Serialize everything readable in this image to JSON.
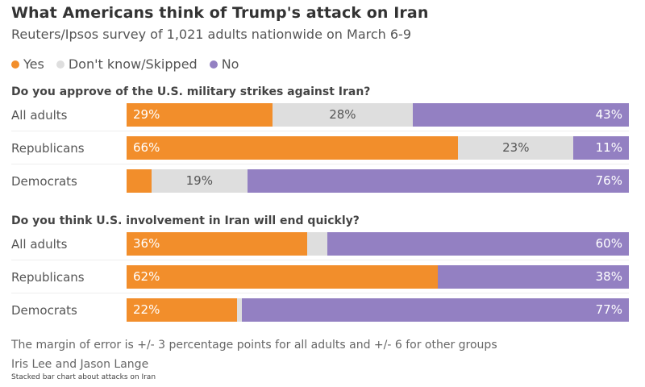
{
  "header": {
    "title": "What Americans think of Trump's attack on Iran",
    "subtitle": "Reuters/Ipsos survey of 1,021 adults nationwide on March 6-9"
  },
  "colors": {
    "yes": "#f28e2b",
    "dont_know": "#dedede",
    "no": "#9380c2"
  },
  "chart_data": {
    "type": "bar",
    "orientation": "horizontal",
    "stacked": true,
    "title": "What Americans think of Trump's attack on Iran",
    "subtitle": "Reuters/Ipsos survey of 1,021 adults nationwide on March 6-9",
    "legend": {
      "placement": "top-left",
      "entries": [
        {
          "key": "yes",
          "label": "Yes"
        },
        {
          "key": "dont_know",
          "label": "Don't know/Skipped"
        },
        {
          "key": "no",
          "label": "No"
        }
      ]
    },
    "unit": "%",
    "xlim": [
      0,
      100
    ],
    "panels": [
      {
        "question": "Do you approve of the U.S. military strikes against Iran?",
        "categories": [
          "All adults",
          "Republicans",
          "Democrats"
        ],
        "series": [
          {
            "name": "Yes",
            "key": "yes",
            "values": [
              29,
              66,
              5
            ],
            "labels": [
              "29%",
              "66%",
              ""
            ]
          },
          {
            "name": "Don't know/Skipped",
            "key": "dont_know",
            "values": [
              28,
              23,
              19
            ],
            "labels": [
              "28%",
              "23%",
              "19%"
            ]
          },
          {
            "name": "No",
            "key": "no",
            "values": [
              43,
              11,
              76
            ],
            "labels": [
              "43%",
              "11%",
              "76%"
            ]
          }
        ]
      },
      {
        "question": "Do you think U.S. involvement in Iran will end quickly?",
        "categories": [
          "All adults",
          "Republicans",
          "Democrats"
        ],
        "series": [
          {
            "name": "Yes",
            "key": "yes",
            "values": [
              36,
              62,
              22
            ],
            "labels": [
              "36%",
              "62%",
              "22%"
            ]
          },
          {
            "name": "Don't know/Skipped",
            "key": "dont_know",
            "values": [
              4,
              0,
              1
            ],
            "labels": [
              "",
              "",
              ""
            ]
          },
          {
            "name": "No",
            "key": "no",
            "values": [
              60,
              38,
              77
            ],
            "labels": [
              "60%",
              "38%",
              "77%"
            ]
          }
        ]
      }
    ]
  },
  "footer": {
    "note": "The margin of error is +/- 3 percentage points for all adults and +/- 6 for other groups",
    "byline": "Iris Lee and Jason Lange",
    "caption": "Stacked bar chart about attacks on Iran"
  }
}
